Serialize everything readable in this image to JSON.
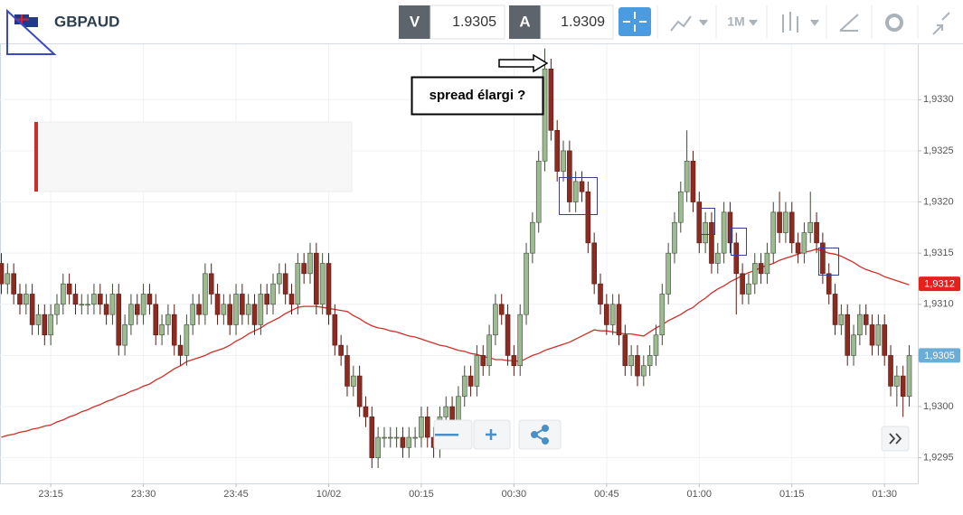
{
  "header": {
    "symbol": "GBPAUD",
    "sell_label": "V",
    "sell_price": "1.9305",
    "buy_label": "A",
    "buy_price": "1.9309",
    "timeframe": "1M"
  },
  "chart_data": {
    "type": "candlestick",
    "annotation": "spread élargi ?",
    "up_color": "#9dbb92",
    "down_color": "#8b2b21",
    "grid": true,
    "ylim": [
      1.92925,
      1.93355
    ],
    "yticks": [
      {
        "value": 1.9295,
        "label": "1,9295"
      },
      {
        "value": 1.93,
        "label": "1,9300"
      },
      {
        "value": 1.9305,
        "label": "1,9305"
      },
      {
        "value": 1.931,
        "label": "1,9310"
      },
      {
        "value": 1.9315,
        "label": "1,9315"
      },
      {
        "value": 1.932,
        "label": "1,9320"
      },
      {
        "value": 1.9325,
        "label": "1,9325"
      },
      {
        "value": 1.933,
        "label": "1,9330"
      }
    ],
    "price_tags": [
      {
        "value": 1.9312,
        "label": "1,9312",
        "color": "#e8201c"
      },
      {
        "value": 1.9305,
        "label": "1,9305",
        "color": "#6aaed8"
      }
    ],
    "categories": [
      null,
      null,
      null,
      null,
      null,
      null,
      null,
      null,
      "23:15",
      null,
      null,
      null,
      null,
      null,
      null,
      null,
      null,
      null,
      null,
      null,
      null,
      null,
      null,
      "23:30",
      null,
      null,
      null,
      null,
      null,
      null,
      null,
      null,
      null,
      null,
      null,
      null,
      null,
      null,
      "23:45",
      null,
      null,
      null,
      null,
      null,
      null,
      null,
      null,
      null,
      null,
      null,
      null,
      null,
      null,
      "10/02",
      null,
      null,
      null,
      null,
      null,
      null,
      null,
      null,
      null,
      null,
      null,
      null,
      null,
      null,
      "00:15",
      null,
      null,
      null,
      null,
      null,
      null,
      null,
      null,
      null,
      null,
      null,
      null,
      null,
      null,
      "00:30",
      null,
      null,
      null,
      null,
      null,
      null,
      null,
      null,
      null,
      null,
      null,
      null,
      null,
      null,
      "00:45",
      null,
      null,
      null,
      null,
      null,
      null,
      null,
      null,
      null,
      null,
      null,
      null,
      null,
      null,
      "01:00",
      null,
      null,
      null,
      null,
      null,
      null,
      null,
      null,
      null,
      null,
      null,
      null,
      null,
      null,
      "01:15",
      null,
      null,
      null,
      null,
      null,
      null,
      null,
      null,
      null,
      null,
      null,
      null,
      null,
      null,
      "01:30",
      null,
      null,
      null,
      null
    ],
    "open": [
      1.9314,
      1.9312,
      1.9313,
      1.9311,
      1.931,
      1.9311,
      1.9308,
      1.9309,
      1.9307,
      1.9309,
      1.931,
      1.9312,
      1.9311,
      1.931,
      1.931,
      1.931,
      1.9311,
      1.931,
      1.9309,
      1.9311,
      1.9306,
      1.9308,
      1.931,
      1.9309,
      1.9311,
      1.931,
      1.9307,
      1.9308,
      1.9309,
      1.9306,
      1.9305,
      1.9308,
      1.931,
      1.9309,
      1.9313,
      1.9311,
      1.9309,
      1.931,
      1.9308,
      1.9311,
      1.9309,
      1.931,
      1.9308,
      1.9311,
      1.931,
      1.9312,
      1.9313,
      1.9311,
      1.931,
      1.9314,
      1.9313,
      1.9315,
      1.931,
      1.9314,
      1.9309,
      1.9306,
      1.9305,
      1.9302,
      1.9303,
      1.93,
      1.9299,
      1.9295,
      1.9297,
      1.9297,
      1.9297,
      1.9297,
      1.9296,
      1.9297,
      1.9297,
      1.9299,
      1.9297,
      1.9296,
      1.9299,
      1.93,
      1.9298,
      1.9301,
      1.9303,
      1.9302,
      1.9305,
      1.9304,
      1.9307,
      1.931,
      1.9309,
      1.9305,
      1.9304,
      1.9309,
      1.9315,
      1.9318,
      1.9324,
      1.9333,
      1.9327,
      1.9323,
      1.9325,
      1.932,
      1.9322,
      1.9321,
      1.9316,
      1.9312,
      1.931,
      1.9308,
      1.931,
      1.9307,
      1.9304,
      1.9305,
      1.9303,
      1.9304,
      1.9305,
      1.9307,
      1.9311,
      1.9315,
      1.9318,
      1.9321,
      1.9324,
      1.932,
      1.9316,
      1.9318,
      1.9314,
      1.9315,
      1.9319,
      1.9316,
      1.9313,
      1.9311,
      1.9312,
      1.9314,
      1.9313,
      1.9315,
      1.9319,
      1.9317,
      1.9319,
      1.9316,
      1.9315,
      1.9317,
      1.9318,
      1.9316,
      1.9313,
      1.9311,
      1.9308,
      1.9309,
      1.9305,
      1.9307,
      1.9309,
      1.9308,
      1.9306,
      1.9308,
      1.9305,
      1.9302,
      1.9303,
      1.9301
    ],
    "high": [
      1.9315,
      1.9314,
      1.9314,
      1.9312,
      1.9312,
      1.9312,
      1.931,
      1.931,
      1.931,
      1.9311,
      1.9313,
      1.9313,
      1.9312,
      1.9311,
      1.9311,
      1.9312,
      1.9312,
      1.9311,
      1.9312,
      1.9312,
      1.9309,
      1.9311,
      1.9311,
      1.9312,
      1.9312,
      1.9311,
      1.9309,
      1.931,
      1.931,
      1.9307,
      1.9309,
      1.9311,
      1.9311,
      1.9314,
      1.9314,
      1.9312,
      1.9311,
      1.9311,
      1.9312,
      1.9312,
      1.9311,
      1.9311,
      1.9312,
      1.9312,
      1.9313,
      1.9314,
      1.9314,
      1.9312,
      1.9315,
      1.9315,
      1.9316,
      1.9316,
      1.9315,
      1.9315,
      1.931,
      1.9307,
      1.9306,
      1.9304,
      1.9304,
      1.9301,
      1.93,
      1.9298,
      1.9298,
      1.9298,
      1.9298,
      1.9298,
      1.9298,
      1.9298,
      1.93,
      1.93,
      1.9298,
      1.93,
      1.9301,
      1.9301,
      1.9302,
      1.9304,
      1.9304,
      1.9306,
      1.9306,
      1.9308,
      1.9311,
      1.9311,
      1.931,
      1.9306,
      1.931,
      1.9316,
      1.9319,
      1.9325,
      1.9335,
      1.9334,
      1.9328,
      1.9326,
      1.9326,
      1.9323,
      1.9323,
      1.9322,
      1.9317,
      1.9313,
      1.9311,
      1.9311,
      1.9311,
      1.9308,
      1.9306,
      1.9306,
      1.9305,
      1.9306,
      1.9308,
      1.9312,
      1.9316,
      1.9319,
      1.9322,
      1.9327,
      1.9325,
      1.9321,
      1.9319,
      1.9319,
      1.9316,
      1.932,
      1.932,
      1.9317,
      1.9314,
      1.9313,
      1.9315,
      1.9315,
      1.9316,
      1.932,
      1.9321,
      1.932,
      1.932,
      1.9317,
      1.9318,
      1.9321,
      1.9319,
      1.9317,
      1.9314,
      1.9312,
      1.931,
      1.931,
      1.9308,
      1.931,
      1.931,
      1.9309,
      1.9309,
      1.9309,
      1.9306,
      1.9304,
      1.9304,
      1.9306
    ],
    "low": [
      1.9311,
      1.9311,
      1.931,
      1.9309,
      1.9309,
      1.9307,
      1.9307,
      1.9306,
      1.9306,
      1.9308,
      1.9309,
      1.931,
      1.9309,
      1.9309,
      1.9309,
      1.9309,
      1.9309,
      1.9308,
      1.9308,
      1.9305,
      1.9305,
      1.9307,
      1.9308,
      1.9308,
      1.9309,
      1.9306,
      1.9306,
      1.9307,
      1.9305,
      1.9304,
      1.9304,
      1.9307,
      1.9308,
      1.9308,
      1.931,
      1.9308,
      1.9308,
      1.9307,
      1.9307,
      1.9308,
      1.9308,
      1.9307,
      1.9307,
      1.9309,
      1.9309,
      1.9311,
      1.931,
      1.9309,
      1.9309,
      1.9312,
      1.9312,
      1.9309,
      1.9309,
      1.9308,
      1.9305,
      1.9304,
      1.9301,
      1.9301,
      1.9299,
      1.9298,
      1.9294,
      1.9294,
      1.9296,
      1.9296,
      1.9296,
      1.9295,
      1.9295,
      1.9296,
      1.9296,
      1.9296,
      1.9295,
      1.9295,
      1.9298,
      1.9297,
      1.9297,
      1.93,
      1.9301,
      1.9301,
      1.9303,
      1.9303,
      1.9306,
      1.9308,
      1.9304,
      1.9303,
      1.9303,
      1.9308,
      1.9314,
      1.9317,
      1.9323,
      1.9326,
      1.9322,
      1.9322,
      1.9319,
      1.9319,
      1.932,
      1.9315,
      1.9311,
      1.9309,
      1.9307,
      1.9307,
      1.9306,
      1.9303,
      1.9303,
      1.9302,
      1.9302,
      1.9303,
      1.9304,
      1.9306,
      1.931,
      1.9314,
      1.9317,
      1.932,
      1.9319,
      1.9315,
      1.9315,
      1.9313,
      1.9313,
      1.9314,
      1.9315,
      1.9309,
      1.931,
      1.931,
      1.9311,
      1.9312,
      1.9312,
      1.9314,
      1.9316,
      1.9316,
      1.9315,
      1.9314,
      1.9314,
      1.9316,
      1.9315,
      1.9312,
      1.931,
      1.9307,
      1.9307,
      1.9304,
      1.9304,
      1.9306,
      1.9307,
      1.9305,
      1.9305,
      1.9304,
      1.9301,
      1.93,
      1.9299,
      1.93
    ],
    "close": [
      1.9312,
      1.9313,
      1.9311,
      1.931,
      1.9311,
      1.9308,
      1.9309,
      1.9307,
      1.9309,
      1.931,
      1.9312,
      1.9311,
      1.931,
      1.931,
      1.931,
      1.9311,
      1.931,
      1.9309,
      1.9311,
      1.9306,
      1.9308,
      1.931,
      1.9309,
      1.9311,
      1.931,
      1.9307,
      1.9308,
      1.9309,
      1.9306,
      1.9305,
      1.9308,
      1.931,
      1.9309,
      1.9313,
      1.9311,
      1.9309,
      1.931,
      1.9308,
      1.9311,
      1.9309,
      1.931,
      1.9308,
      1.9311,
      1.931,
      1.9312,
      1.9313,
      1.9311,
      1.931,
      1.9314,
      1.9313,
      1.9315,
      1.931,
      1.9314,
      1.9309,
      1.9306,
      1.9305,
      1.9302,
      1.9303,
      1.93,
      1.9299,
      1.9295,
      1.9297,
      1.9297,
      1.9297,
      1.9297,
      1.9296,
      1.9297,
      1.9297,
      1.9299,
      1.9297,
      1.9296,
      1.9299,
      1.93,
      1.9298,
      1.9301,
      1.9303,
      1.9302,
      1.9305,
      1.9304,
      1.9307,
      1.931,
      1.9309,
      1.9305,
      1.9304,
      1.9309,
      1.9315,
      1.9318,
      1.9324,
      1.9333,
      1.9327,
      1.9323,
      1.9325,
      1.932,
      1.9322,
      1.9321,
      1.9316,
      1.9312,
      1.931,
      1.9308,
      1.931,
      1.9307,
      1.9304,
      1.9305,
      1.9303,
      1.9304,
      1.9305,
      1.9307,
      1.9311,
      1.9315,
      1.9318,
      1.9321,
      1.9324,
      1.932,
      1.9316,
      1.9318,
      1.9314,
      1.9315,
      1.9319,
      1.9316,
      1.9313,
      1.9311,
      1.9312,
      1.9314,
      1.9313,
      1.9315,
      1.9319,
      1.9317,
      1.9319,
      1.9316,
      1.9315,
      1.9317,
      1.9318,
      1.9316,
      1.9313,
      1.9311,
      1.9308,
      1.9309,
      1.9305,
      1.9307,
      1.9309,
      1.9308,
      1.9306,
      1.9308,
      1.9305,
      1.9302,
      1.9303,
      1.9301,
      1.9305
    ],
    "moving_average": {
      "color": "#d0302a",
      "values": [
        1.9297,
        1.92972,
        1.92973,
        1.92975,
        1.92976,
        1.92978,
        1.92979,
        1.92981,
        1.92982,
        1.92985,
        1.92987,
        1.9299,
        1.92992,
        1.92995,
        1.92997,
        1.93,
        1.93002,
        1.93005,
        1.93007,
        1.9301,
        1.93012,
        1.93015,
        1.93017,
        1.9302,
        1.93022,
        1.93026,
        1.93029,
        1.93033,
        1.93037,
        1.9304,
        1.93044,
        1.93046,
        1.93048,
        1.9305,
        1.93053,
        1.93055,
        1.93057,
        1.9306,
        1.93064,
        1.93067,
        1.93071,
        1.93074,
        1.93077,
        1.93081,
        1.93084,
        1.93087,
        1.93091,
        1.93094,
        1.93097,
        1.93098,
        1.93098,
        1.93098,
        1.93097,
        1.93096,
        1.93095,
        1.93094,
        1.93093,
        1.93089,
        1.93086,
        1.93082,
        1.93079,
        1.93077,
        1.93076,
        1.93074,
        1.93073,
        1.93071,
        1.93069,
        1.93068,
        1.93066,
        1.93064,
        1.93062,
        1.9306,
        1.93059,
        1.93057,
        1.93055,
        1.93054,
        1.93052,
        1.93051,
        1.93049,
        1.93048,
        1.93046,
        1.93046,
        1.93045,
        1.93045,
        1.93044,
        1.93047,
        1.9305,
        1.93052,
        1.93055,
        1.93057,
        1.93059,
        1.93061,
        1.93063,
        1.93066,
        1.93069,
        1.93072,
        1.93075,
        1.93074,
        1.93074,
        1.93073,
        1.93072,
        1.93071,
        1.93071,
        1.9307,
        1.93069,
        1.93073,
        1.93077,
        1.9308,
        1.93084,
        1.93087,
        1.9309,
        1.93094,
        1.93097,
        1.93102,
        1.93106,
        1.93111,
        1.93115,
        1.93118,
        1.93122,
        1.93125,
        1.93128,
        1.93131,
        1.93133,
        1.93136,
        1.93138,
        1.9314,
        1.93143,
        1.93145,
        1.93147,
        1.93149,
        1.93151,
        1.93152,
        1.93154,
        1.93152,
        1.9315,
        1.93149,
        1.93147,
        1.93144,
        1.93141,
        1.93137,
        1.93134,
        1.93132,
        1.9313,
        1.93127,
        1.93125,
        1.93123,
        1.93121,
        1.93119
      ]
    }
  }
}
